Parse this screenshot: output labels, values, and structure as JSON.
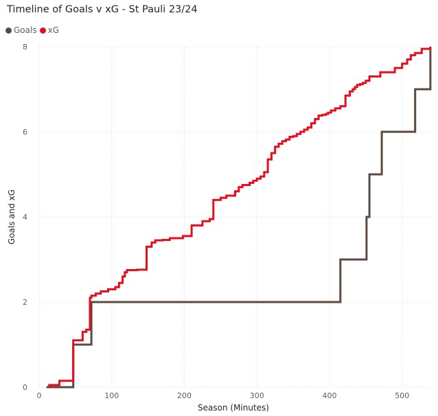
{
  "chart_data": {
    "type": "line",
    "title": "Timeline of Goals v xG - St Pauli 23/24",
    "xlabel": "Season (Minutes)",
    "ylabel": "Goals and xG",
    "xlim": [
      0,
      540
    ],
    "ylim": [
      0,
      8
    ],
    "xticks": [
      0,
      100,
      200,
      300,
      400,
      500
    ],
    "yticks": [
      0,
      2,
      4,
      6,
      8
    ],
    "grid": true,
    "legend_position": "top-left",
    "interpolation": "step",
    "series": [
      {
        "name": "Goals",
        "color": "#5b4a3f",
        "x": [
          10,
          47,
          47,
          72,
          72,
          415,
          415,
          451,
          451,
          455,
          455,
          472,
          472,
          518,
          518,
          539,
          539
        ],
        "y": [
          0,
          0,
          1,
          1,
          2,
          2,
          3,
          3,
          4,
          4,
          5,
          5,
          6,
          6,
          7,
          7,
          8
        ]
      },
      {
        "name": "xG",
        "color": "#e60d1d",
        "x": [
          12,
          14,
          28,
          47,
          60,
          65,
          70,
          72,
          78,
          85,
          95,
          105,
          110,
          115,
          118,
          121,
          124,
          127,
          130,
          135,
          148,
          155,
          160,
          170,
          180,
          198,
          210,
          225,
          235,
          240,
          250,
          258,
          270,
          275,
          280,
          290,
          295,
          300,
          305,
          310,
          315,
          320,
          325,
          330,
          335,
          340,
          345,
          350,
          355,
          360,
          365,
          370,
          375,
          380,
          385,
          390,
          395,
          398,
          402,
          408,
          415,
          422,
          428,
          432,
          435,
          438,
          442,
          446,
          450,
          455,
          470,
          490,
          500,
          507,
          512,
          518,
          527,
          539
        ],
        "y": [
          0.02,
          0.05,
          0.15,
          1.1,
          1.3,
          1.35,
          2.1,
          2.15,
          2.2,
          2.25,
          2.3,
          2.35,
          2.45,
          2.6,
          2.7,
          2.75,
          2.75,
          2.75,
          2.75,
          2.76,
          3.3,
          3.4,
          3.45,
          3.46,
          3.5,
          3.55,
          3.8,
          3.9,
          3.95,
          4.4,
          4.45,
          4.5,
          4.6,
          4.7,
          4.75,
          4.8,
          4.85,
          4.9,
          4.95,
          5.05,
          5.35,
          5.5,
          5.65,
          5.72,
          5.78,
          5.82,
          5.88,
          5.9,
          5.95,
          6.0,
          6.05,
          6.1,
          6.2,
          6.3,
          6.38,
          6.4,
          6.42,
          6.45,
          6.5,
          6.55,
          6.6,
          6.85,
          6.95,
          7.0,
          7.05,
          7.1,
          7.12,
          7.15,
          7.2,
          7.3,
          7.4,
          7.5,
          7.6,
          7.7,
          7.8,
          7.85,
          7.95,
          8.0
        ]
      }
    ]
  }
}
